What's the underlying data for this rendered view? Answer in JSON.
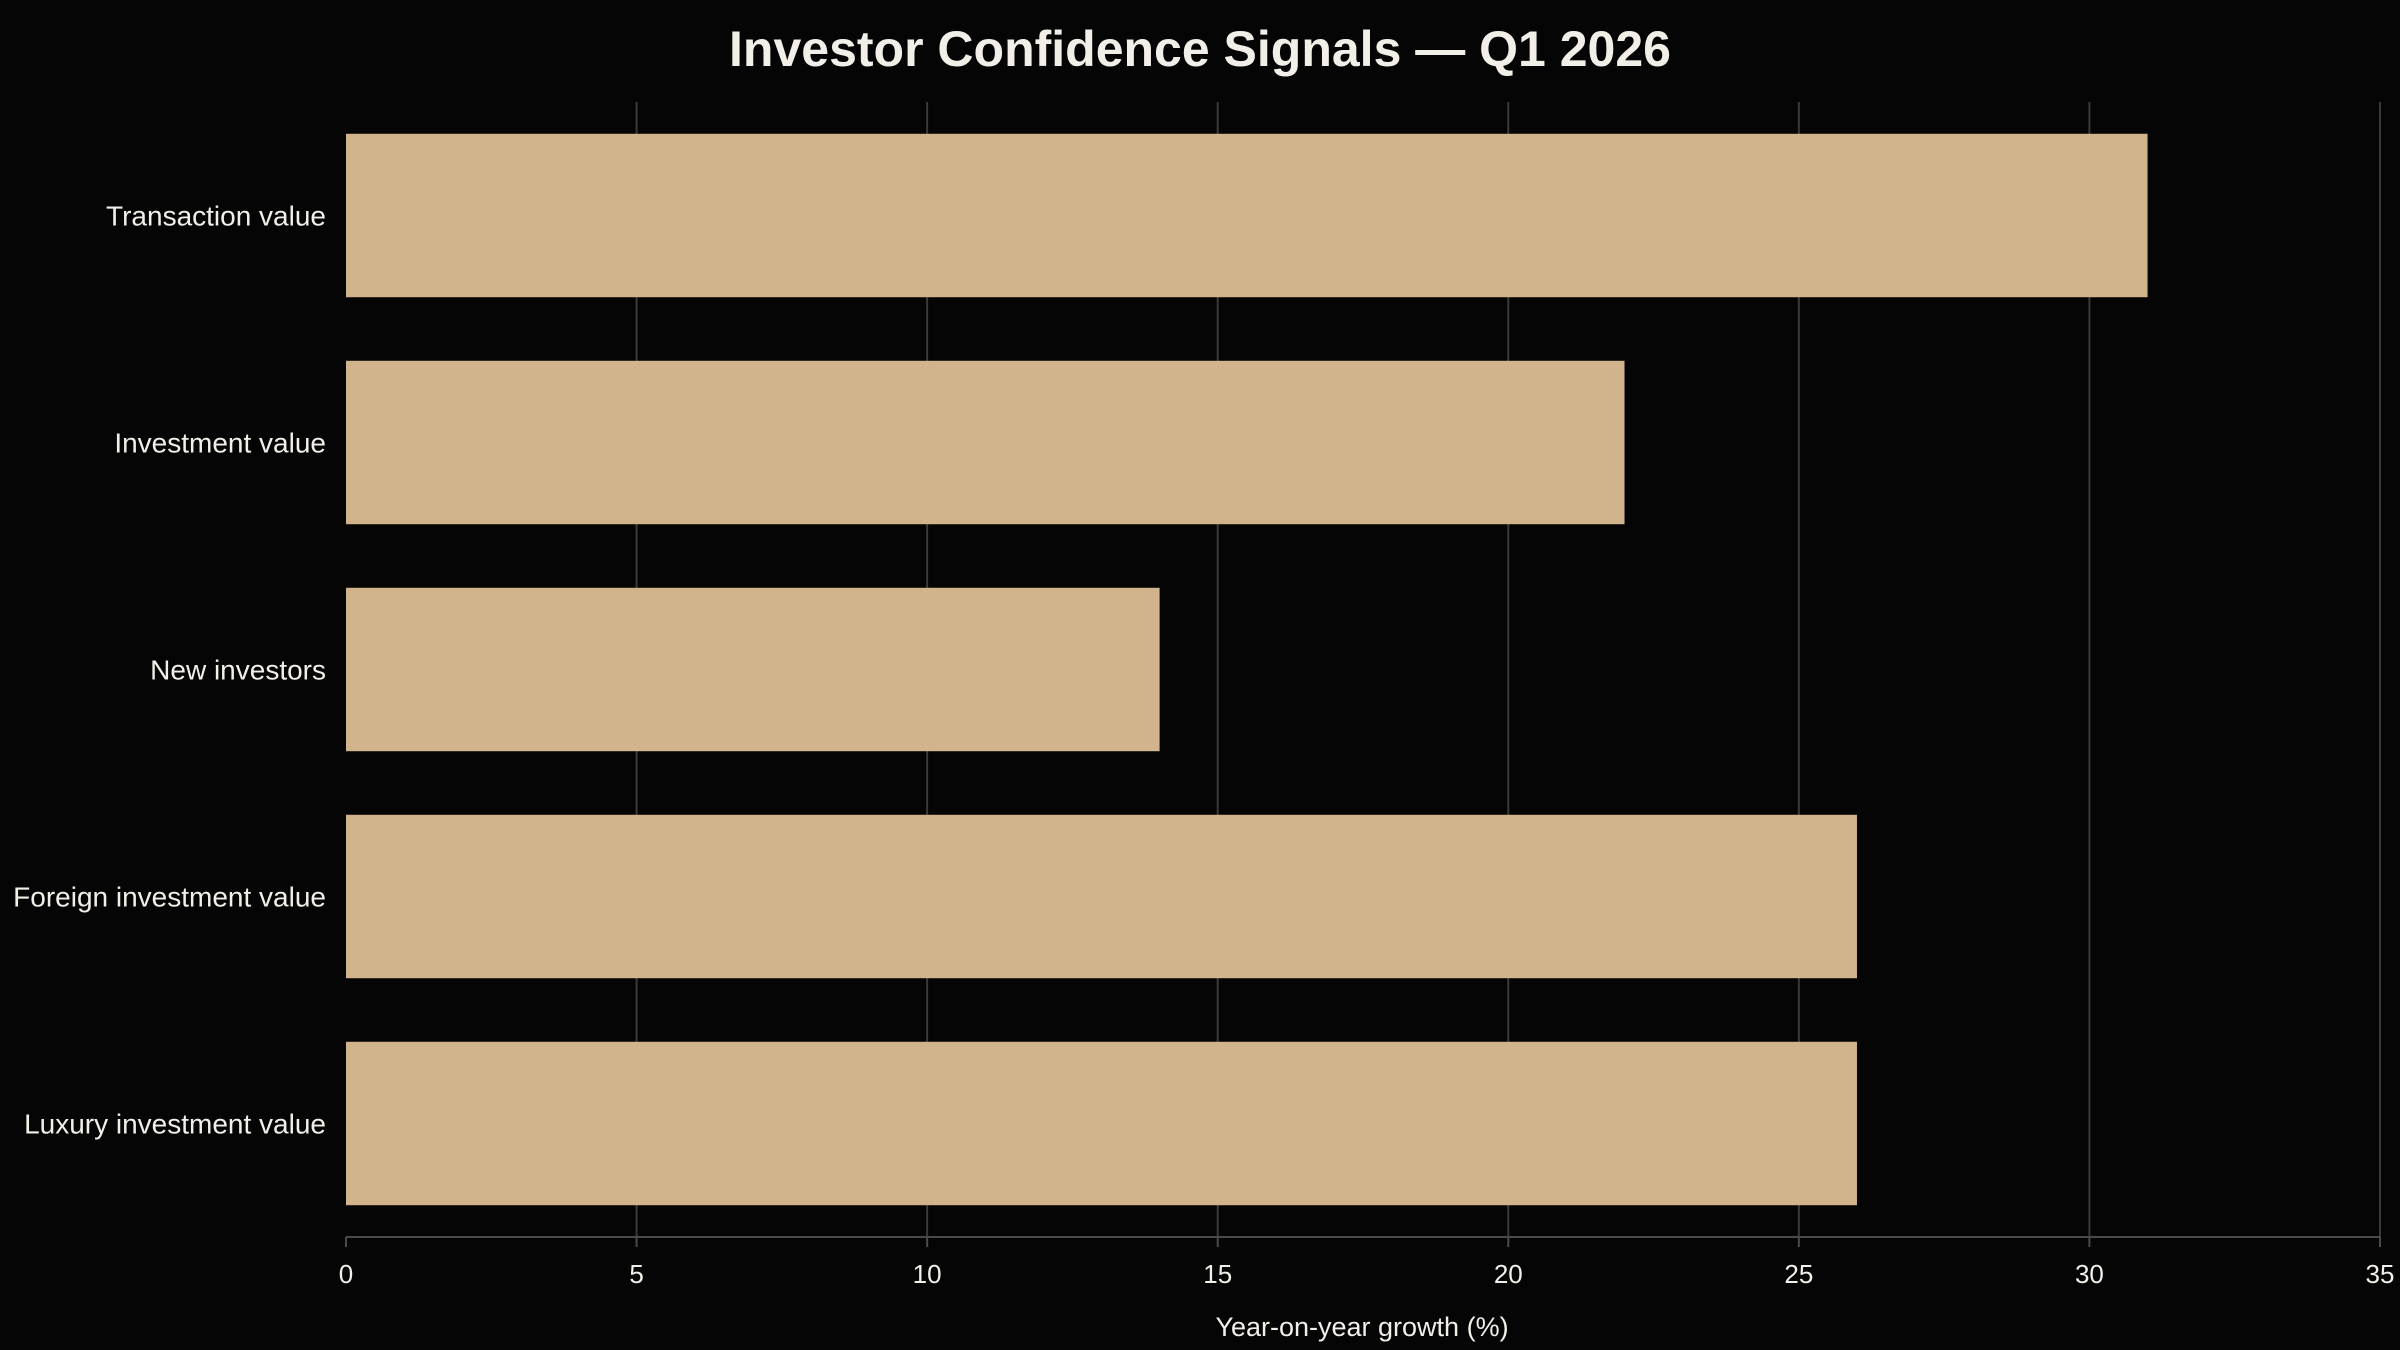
{
  "chart_data": {
    "type": "bar",
    "orientation": "horizontal",
    "title": "Investor Confidence Signals — Q1 2026",
    "xlabel": "Year-on-year growth (%)",
    "ylabel": "",
    "categories": [
      "Transaction value",
      "Investment value",
      "New investors",
      "Foreign investment value",
      "Luxury investment value"
    ],
    "values": [
      31,
      22,
      14,
      26,
      26
    ],
    "xlim": [
      0,
      35
    ],
    "xticks": [
      "0",
      "5",
      "10",
      "15",
      "20",
      "25",
      "30",
      "35"
    ],
    "grid": "vertical",
    "legend": "none",
    "colors": {
      "background": "#050505",
      "bar": "#d2b48c",
      "grid": "#3a3a3a",
      "axis": "#4a4a4a",
      "text": "#f2efe8"
    }
  }
}
